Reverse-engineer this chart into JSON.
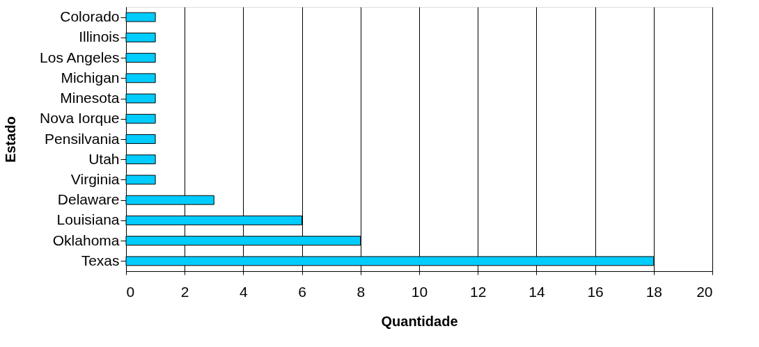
{
  "chart_data": {
    "type": "bar",
    "orientation": "horizontal",
    "xlabel": "Quantidade",
    "ylabel": "Estado",
    "categories": [
      "Colorado",
      "Illinois",
      "Los Angeles",
      "Michigan",
      "Minesota",
      "Nova Iorque",
      "Pensilvania",
      "Utah",
      "Virginia",
      "Delaware",
      "Louisiana",
      "Oklahoma",
      "Texas"
    ],
    "values": [
      1,
      1,
      1,
      1,
      1,
      1,
      1,
      1,
      1,
      3,
      6,
      8,
      18
    ],
    "color": "#00ccff",
    "xlim": [
      0,
      20
    ],
    "xticks": [
      0,
      2,
      4,
      6,
      8,
      10,
      12,
      14,
      16,
      18,
      20
    ],
    "grid": "x"
  }
}
